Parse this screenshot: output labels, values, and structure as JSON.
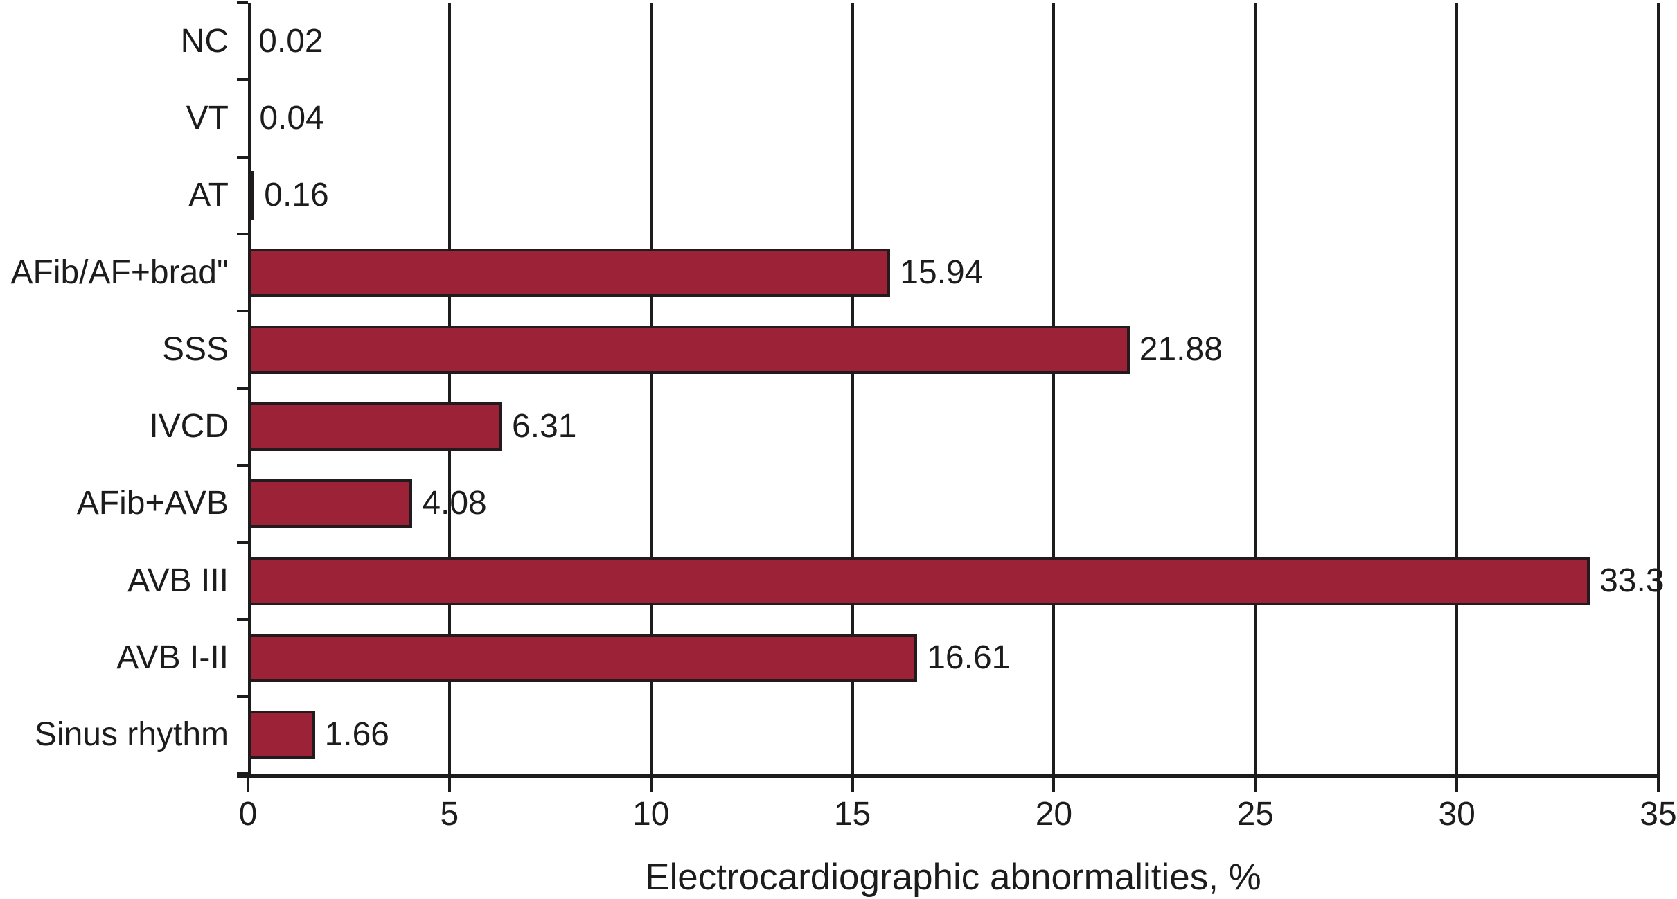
{
  "chart_data": {
    "type": "bar",
    "orientation": "horizontal",
    "title": "",
    "xlabel": "Electrocardiographic abnormalities, %",
    "ylabel": "",
    "xlim": [
      0,
      35
    ],
    "xticks": [
      0,
      5,
      10,
      15,
      20,
      25,
      30,
      35
    ],
    "grid": "vertical",
    "legend": "none",
    "categories_top_to_bottom": [
      "NC",
      "VT",
      "AT",
      "AFib/AF+brad\"",
      "SSS",
      "IVCD",
      "AFib+AVB",
      "AVB III",
      "AVB I-II",
      "Sinus rhythm"
    ],
    "values": [
      0.02,
      0.04,
      0.16,
      15.94,
      21.88,
      6.31,
      4.08,
      33.3,
      16.61,
      1.66
    ],
    "value_labels": [
      "0.02",
      "0.04",
      "0.16",
      "15.94",
      "21.88",
      "6.31",
      "4.08",
      "33.3",
      "16.61",
      "1.66"
    ],
    "colors": {
      "bar_fill": "#9C2238",
      "bar_border": "#221A1C",
      "axis": "#1C1C1C",
      "text": "#1C1C1C",
      "background": "#FFFFFF"
    }
  }
}
